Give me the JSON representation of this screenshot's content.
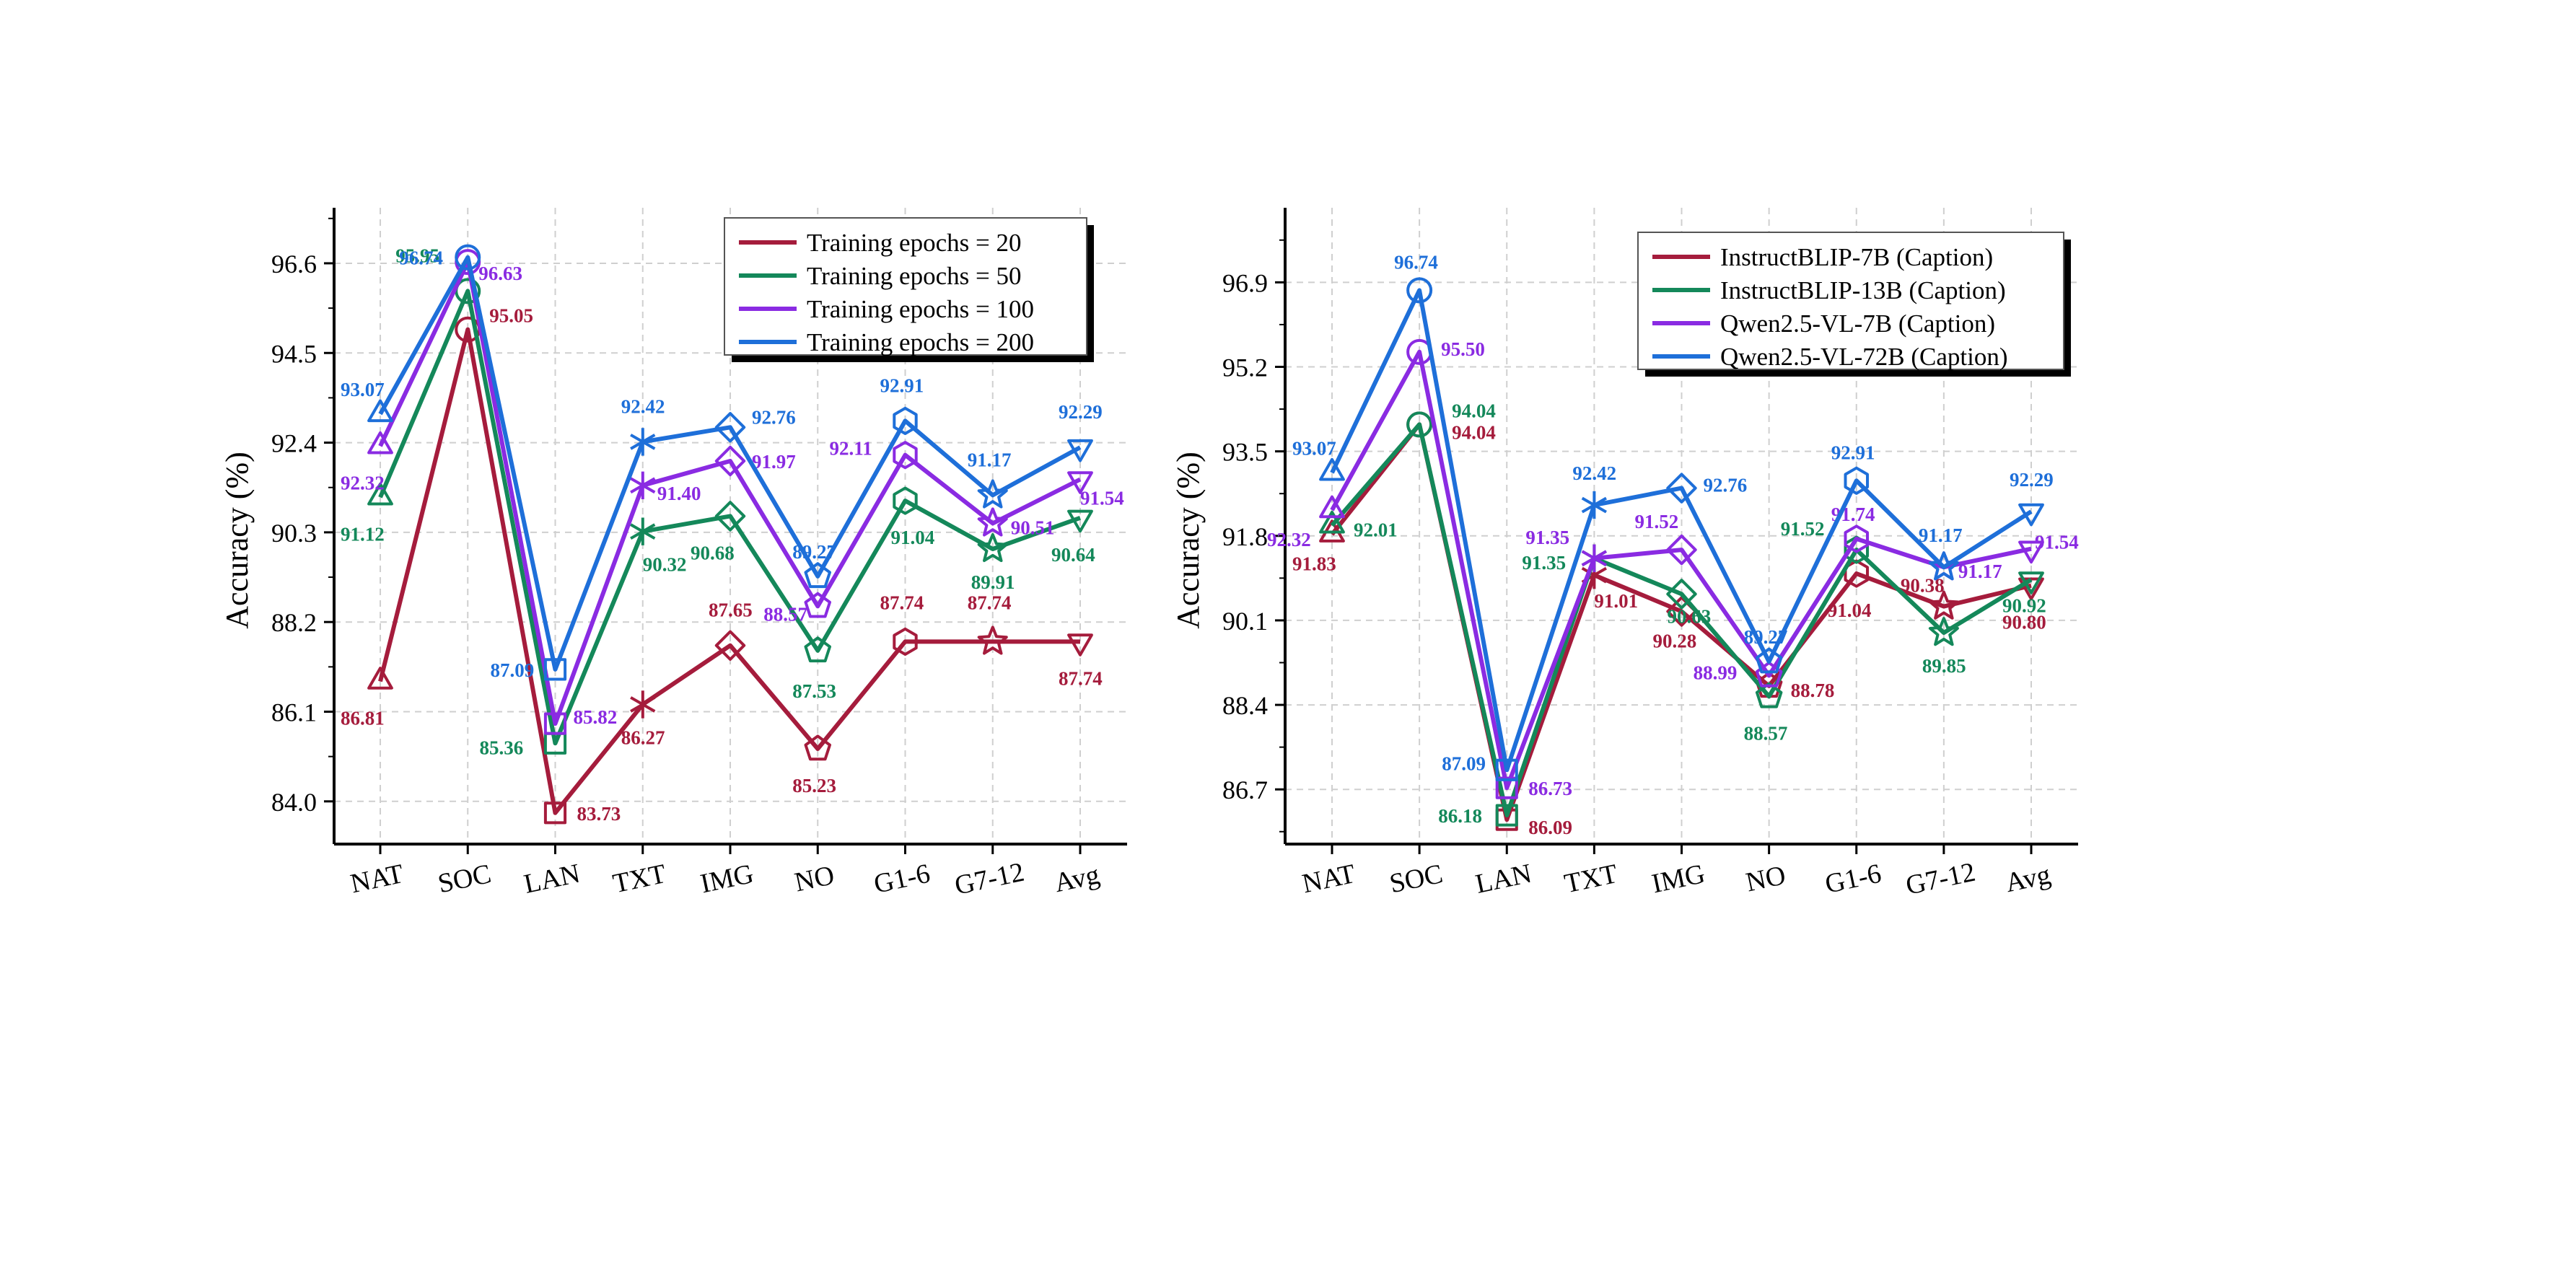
{
  "chart_data": [
    {
      "type": "line",
      "categories": [
        "NAT",
        "SOC",
        "LAN",
        "TXT",
        "IMG",
        "NO",
        "G1-6",
        "G7-12",
        "Avg"
      ],
      "ylabel": "Accuracy (%)",
      "ylim": [
        83.0,
        97.9
      ],
      "yticks": [
        84.0,
        86.1,
        88.2,
        90.3,
        92.4,
        94.5,
        96.6
      ],
      "ytick_labels": [
        "84.0",
        "86.1",
        "88.2",
        "90.3",
        "92.4",
        "94.5",
        "96.6"
      ],
      "grid": true,
      "legend_position": "top-right",
      "series": [
        {
          "name": "Training epochs = 20",
          "color": "#A51C3C",
          "values": [
            86.81,
            95.05,
            83.73,
            86.27,
            87.65,
            85.23,
            87.74,
            87.74,
            87.74
          ],
          "labels": [
            "86.81",
            "95.05",
            "83.73",
            "86.27",
            "87.65",
            "85.23",
            "87.74",
            "87.74",
            "87.74"
          ]
        },
        {
          "name": "Training epochs = 50",
          "color": "#14885A",
          "values": [
            91.12,
            95.95,
            85.36,
            90.32,
            90.68,
            87.53,
            91.04,
            89.91,
            90.64
          ],
          "labels": [
            "91.12",
            "95.95",
            "85.36",
            "90.32",
            "90.68",
            "87.53",
            "91.04",
            "89.91",
            "90.64"
          ]
        },
        {
          "name": "Training epochs = 100",
          "color": "#8A2BE2",
          "values": [
            92.32,
            96.63,
            85.82,
            91.4,
            91.97,
            88.57,
            92.11,
            90.51,
            91.54
          ],
          "labels": [
            "92.32",
            "96.63",
            "85.82",
            "91.40",
            "91.97",
            "88.57",
            "92.11",
            "90.51",
            "91.54"
          ]
        },
        {
          "name": "Training epochs = 200",
          "color": "#1E6FD9",
          "values": [
            93.07,
            96.74,
            87.09,
            92.42,
            92.76,
            89.27,
            92.91,
            91.17,
            92.29
          ],
          "labels": [
            "93.07",
            "96.74",
            "87.09",
            "92.42",
            "92.76",
            "89.27",
            "92.91",
            "91.17",
            "92.29"
          ]
        }
      ]
    },
    {
      "type": "line",
      "categories": [
        "NAT",
        "SOC",
        "LAN",
        "TXT",
        "IMG",
        "NO",
        "G1-6",
        "G7-12",
        "Avg"
      ],
      "ylabel": "Accuracy (%)",
      "ylim": [
        85.6,
        98.4
      ],
      "yticks": [
        86.7,
        88.4,
        90.1,
        91.8,
        93.5,
        95.2,
        96.9
      ],
      "ytick_labels": [
        "86.7",
        "88.4",
        "90.1",
        "91.8",
        "93.5",
        "95.2",
        "96.9"
      ],
      "grid": true,
      "legend_position": "top-right",
      "series": [
        {
          "name": "InstructBLIP-7B (Caption)",
          "color": "#A51C3C",
          "values": [
            91.83,
            94.04,
            86.09,
            91.01,
            90.28,
            88.78,
            91.04,
            90.38,
            90.8
          ],
          "labels": [
            "91.83",
            "94.04",
            "86.09",
            "91.01",
            "90.28",
            "88.78",
            "91.04",
            "90.38",
            "90.80"
          ]
        },
        {
          "name": "InstructBLIP-13B (Caption)",
          "color": "#14885A",
          "values": [
            92.01,
            94.04,
            86.18,
            91.35,
            90.63,
            88.57,
            91.52,
            89.85,
            90.92
          ],
          "labels": [
            "92.01",
            "94.04",
            "86.18",
            "91.35",
            "90.63",
            "88.57",
            "91.52",
            "89.85",
            "90.92"
          ]
        },
        {
          "name": "Qwen2.5-VL-7B (Caption)",
          "color": "#8A2BE2",
          "values": [
            92.32,
            95.5,
            86.73,
            91.35,
            91.52,
            88.99,
            91.74,
            91.17,
            91.54
          ],
          "labels": [
            "92.32",
            "95.50",
            "86.73",
            "91.35",
            "91.52",
            "88.99",
            "91.74",
            "91.17",
            "91.54"
          ]
        },
        {
          "name": "Qwen2.5-VL-72B (Caption)",
          "color": "#1E6FD9",
          "values": [
            93.07,
            96.74,
            87.09,
            92.42,
            92.76,
            89.27,
            92.91,
            91.17,
            92.29
          ],
          "labels": [
            "93.07",
            "96.74",
            "87.09",
            "92.42",
            "92.76",
            "89.27",
            "92.91",
            "91.17",
            "92.29"
          ]
        }
      ]
    }
  ]
}
